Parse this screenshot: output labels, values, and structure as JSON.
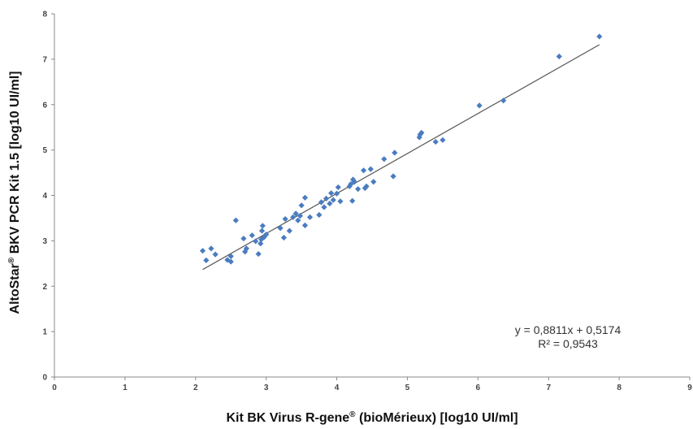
{
  "chart_data": {
    "type": "scatter",
    "title": "",
    "xlabel_main": "Kit BK Virus R-gene",
    "xlabel_sup": "®",
    "xlabel_rest": " (bioMérieux) [log10 UI/ml]",
    "ylabel_main": "AltoStar",
    "ylabel_sup": "®",
    "ylabel_rest": " BKV PCR Kit 1.5 [log10 UI/ml]",
    "xlim": [
      0,
      9
    ],
    "ylim": [
      0,
      8
    ],
    "xticks": [
      "0",
      "1",
      "2",
      "3",
      "4",
      "5",
      "6",
      "7",
      "8",
      "9"
    ],
    "yticks": [
      "0",
      "1",
      "2",
      "3",
      "4",
      "5",
      "6",
      "7",
      "8"
    ],
    "grid": false,
    "legend": "none",
    "marker_color": "#4a7cc0",
    "trendline_color": "#555555",
    "trendline": {
      "slope": 0.8811,
      "intercept": 0.5174,
      "x_range": [
        2.1,
        7.72
      ]
    },
    "equation": "y = 0,8811x + 0,5174",
    "r_squared": "R² = 0,9543",
    "points": [
      [
        2.1,
        2.78
      ],
      [
        2.15,
        2.57
      ],
      [
        2.22,
        2.83
      ],
      [
        2.28,
        2.7
      ],
      [
        2.45,
        2.58
      ],
      [
        2.5,
        2.54
      ],
      [
        2.5,
        2.66
      ],
      [
        2.57,
        3.45
      ],
      [
        2.68,
        3.05
      ],
      [
        2.7,
        2.76
      ],
      [
        2.72,
        2.83
      ],
      [
        2.8,
        3.12
      ],
      [
        2.85,
        2.99
      ],
      [
        2.89,
        2.71
      ],
      [
        2.92,
        2.94
      ],
      [
        2.93,
        3.03
      ],
      [
        2.94,
        3.22
      ],
      [
        2.95,
        3.33
      ],
      [
        2.97,
        3.08
      ],
      [
        3.0,
        3.14
      ],
      [
        3.2,
        3.28
      ],
      [
        3.25,
        3.07
      ],
      [
        3.27,
        3.48
      ],
      [
        3.33,
        3.22
      ],
      [
        3.38,
        3.52
      ],
      [
        3.42,
        3.6
      ],
      [
        3.45,
        3.45
      ],
      [
        3.48,
        3.55
      ],
      [
        3.5,
        3.78
      ],
      [
        3.55,
        3.95
      ],
      [
        3.55,
        3.34
      ],
      [
        3.62,
        3.52
      ],
      [
        3.75,
        3.57
      ],
      [
        3.78,
        3.85
      ],
      [
        3.82,
        3.74
      ],
      [
        3.85,
        3.93
      ],
      [
        3.9,
        3.82
      ],
      [
        3.92,
        4.05
      ],
      [
        3.95,
        3.9
      ],
      [
        4.0,
        4.04
      ],
      [
        4.02,
        4.18
      ],
      [
        4.05,
        3.87
      ],
      [
        4.18,
        4.2
      ],
      [
        4.2,
        4.25
      ],
      [
        4.22,
        3.88
      ],
      [
        4.23,
        4.35
      ],
      [
        4.25,
        4.3
      ],
      [
        4.3,
        4.14
      ],
      [
        4.38,
        4.55
      ],
      [
        4.4,
        4.16
      ],
      [
        4.42,
        4.2
      ],
      [
        4.48,
        4.58
      ],
      [
        4.52,
        4.3
      ],
      [
        4.67,
        4.8
      ],
      [
        4.8,
        4.42
      ],
      [
        4.82,
        4.94
      ],
      [
        5.17,
        5.28
      ],
      [
        5.18,
        5.34
      ],
      [
        5.2,
        5.38
      ],
      [
        5.4,
        5.18
      ],
      [
        5.5,
        5.22
      ],
      [
        6.02,
        5.98
      ],
      [
        6.36,
        6.09
      ],
      [
        7.15,
        7.06
      ],
      [
        7.72,
        7.5
      ]
    ]
  }
}
